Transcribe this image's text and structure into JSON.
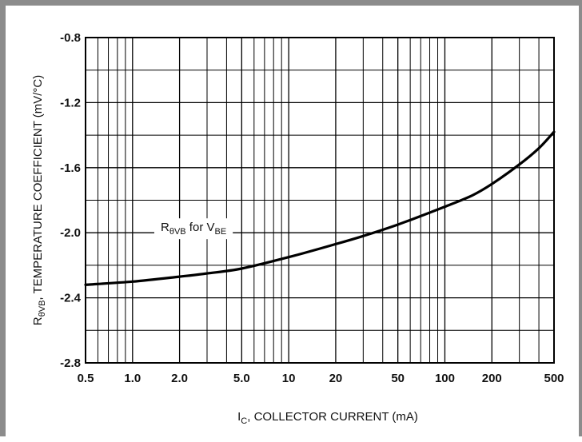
{
  "chart_data": {
    "type": "line",
    "title": "",
    "xscale": "log",
    "grid": true,
    "xlabel": {
      "main": "I",
      "sub": "C",
      "rest": ", COLLECTOR CURRENT (mA)"
    },
    "ylabel": {
      "main": "R",
      "sub": "θVB",
      "rest": ", TEMPERATURE COEFFICIENT (mV/°C)"
    },
    "xlim": [
      0.5,
      500
    ],
    "ylim": [
      -2.8,
      -0.8
    ],
    "x_ticks": [
      0.5,
      1,
      2,
      5,
      10,
      20,
      50,
      100,
      200,
      500
    ],
    "x_tick_labels": [
      "0.5",
      "1.0",
      "2.0",
      "5.0",
      "10",
      "20",
      "50",
      "100",
      "200",
      "500"
    ],
    "y_ticks": [
      -0.8,
      -1.2,
      -1.6,
      -2.0,
      -2.4,
      -2.8
    ],
    "y_tick_labels": [
      "-0.8",
      "-1.2",
      "-1.6",
      "-2.0",
      "-2.4",
      "-2.8"
    ],
    "annotation": {
      "main": "R",
      "sub": "θVB",
      "mid": " for V",
      "sub2": "BE"
    },
    "series": [
      {
        "x": [
          0.5,
          1,
          2,
          3,
          5,
          10,
          20,
          30,
          50,
          100,
          150,
          200,
          300,
          400,
          500
        ],
        "y": [
          -2.32,
          -2.3,
          -2.27,
          -2.25,
          -2.22,
          -2.15,
          -2.07,
          -2.02,
          -1.95,
          -1.84,
          -1.77,
          -1.7,
          -1.58,
          -1.48,
          -1.38
        ]
      }
    ]
  }
}
